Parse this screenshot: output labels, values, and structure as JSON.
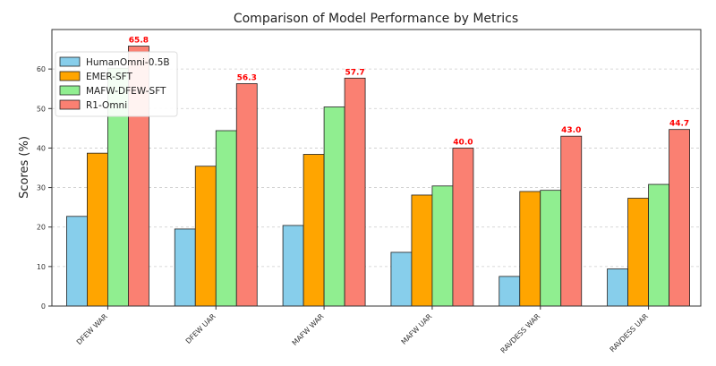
{
  "chart_data": {
    "type": "bar",
    "title": "Comparison of Model Performance by Metrics",
    "xlabel": "",
    "ylabel": "Scores (%)",
    "ylim": [
      0,
      70
    ],
    "yticks": [
      0,
      10,
      20,
      30,
      40,
      50,
      60
    ],
    "grid": "horizontal dashed",
    "legend_position": "top-left",
    "categories": [
      "DFEW WAR",
      "DFEW UAR",
      "MAFW WAR",
      "MAFW UAR",
      "RAVDESS WAR",
      "RAVDESS UAR"
    ],
    "series": [
      {
        "name": "HumanOmni-0.5B",
        "color": "#87ceeb",
        "values": [
          22.7,
          19.5,
          20.4,
          13.6,
          7.5,
          9.4
        ]
      },
      {
        "name": "EMER-SFT",
        "color": "#ffa500",
        "values": [
          38.7,
          35.4,
          38.4,
          28.1,
          29.0,
          27.3
        ]
      },
      {
        "name": "MAFW-DFEW-SFT",
        "color": "#90ee90",
        "values": [
          60.2,
          44.4,
          50.4,
          30.4,
          29.3,
          30.8
        ]
      },
      {
        "name": "R1-Omni",
        "color": "#fa8072",
        "values": [
          65.8,
          56.3,
          57.7,
          40.0,
          43.0,
          44.7
        ]
      }
    ],
    "data_labels": {
      "series": "R1-Omni",
      "color": "#ff0000",
      "labels": [
        "65.8",
        "56.3",
        "57.7",
        "40.0",
        "43.0",
        "44.7"
      ]
    }
  }
}
